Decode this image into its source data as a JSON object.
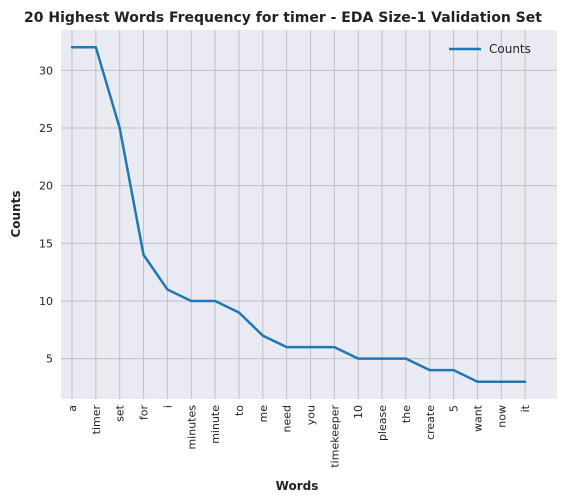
{
  "chart_data": {
    "type": "line",
    "title": "20 Highest Words Frequency for timer - EDA Size-1 Validation Set",
    "xlabel": "Words",
    "ylabel": "Counts",
    "categories": [
      "a",
      "timer",
      "set",
      "for",
      "i",
      "minutes",
      "minute",
      "to",
      "me",
      "need",
      "you",
      "timekeeper",
      "10",
      "please",
      "the",
      "create",
      "5",
      "want",
      "now",
      "it"
    ],
    "series": [
      {
        "name": "Counts",
        "values": [
          32,
          32,
          25,
          14,
          11,
          10,
          10,
          9,
          7,
          6,
          6,
          6,
          5,
          5,
          5,
          4,
          4,
          3,
          3,
          3
        ],
        "color": "#1f77b4"
      }
    ],
    "yticks": [
      "5",
      "10",
      "15",
      "20",
      "25",
      "30"
    ],
    "ylim": [
      1.5,
      33.5
    ],
    "grid": true,
    "legend_position": "top-right",
    "background_color": "#eaeaf2",
    "grid_color": "#c0c0c8"
  }
}
